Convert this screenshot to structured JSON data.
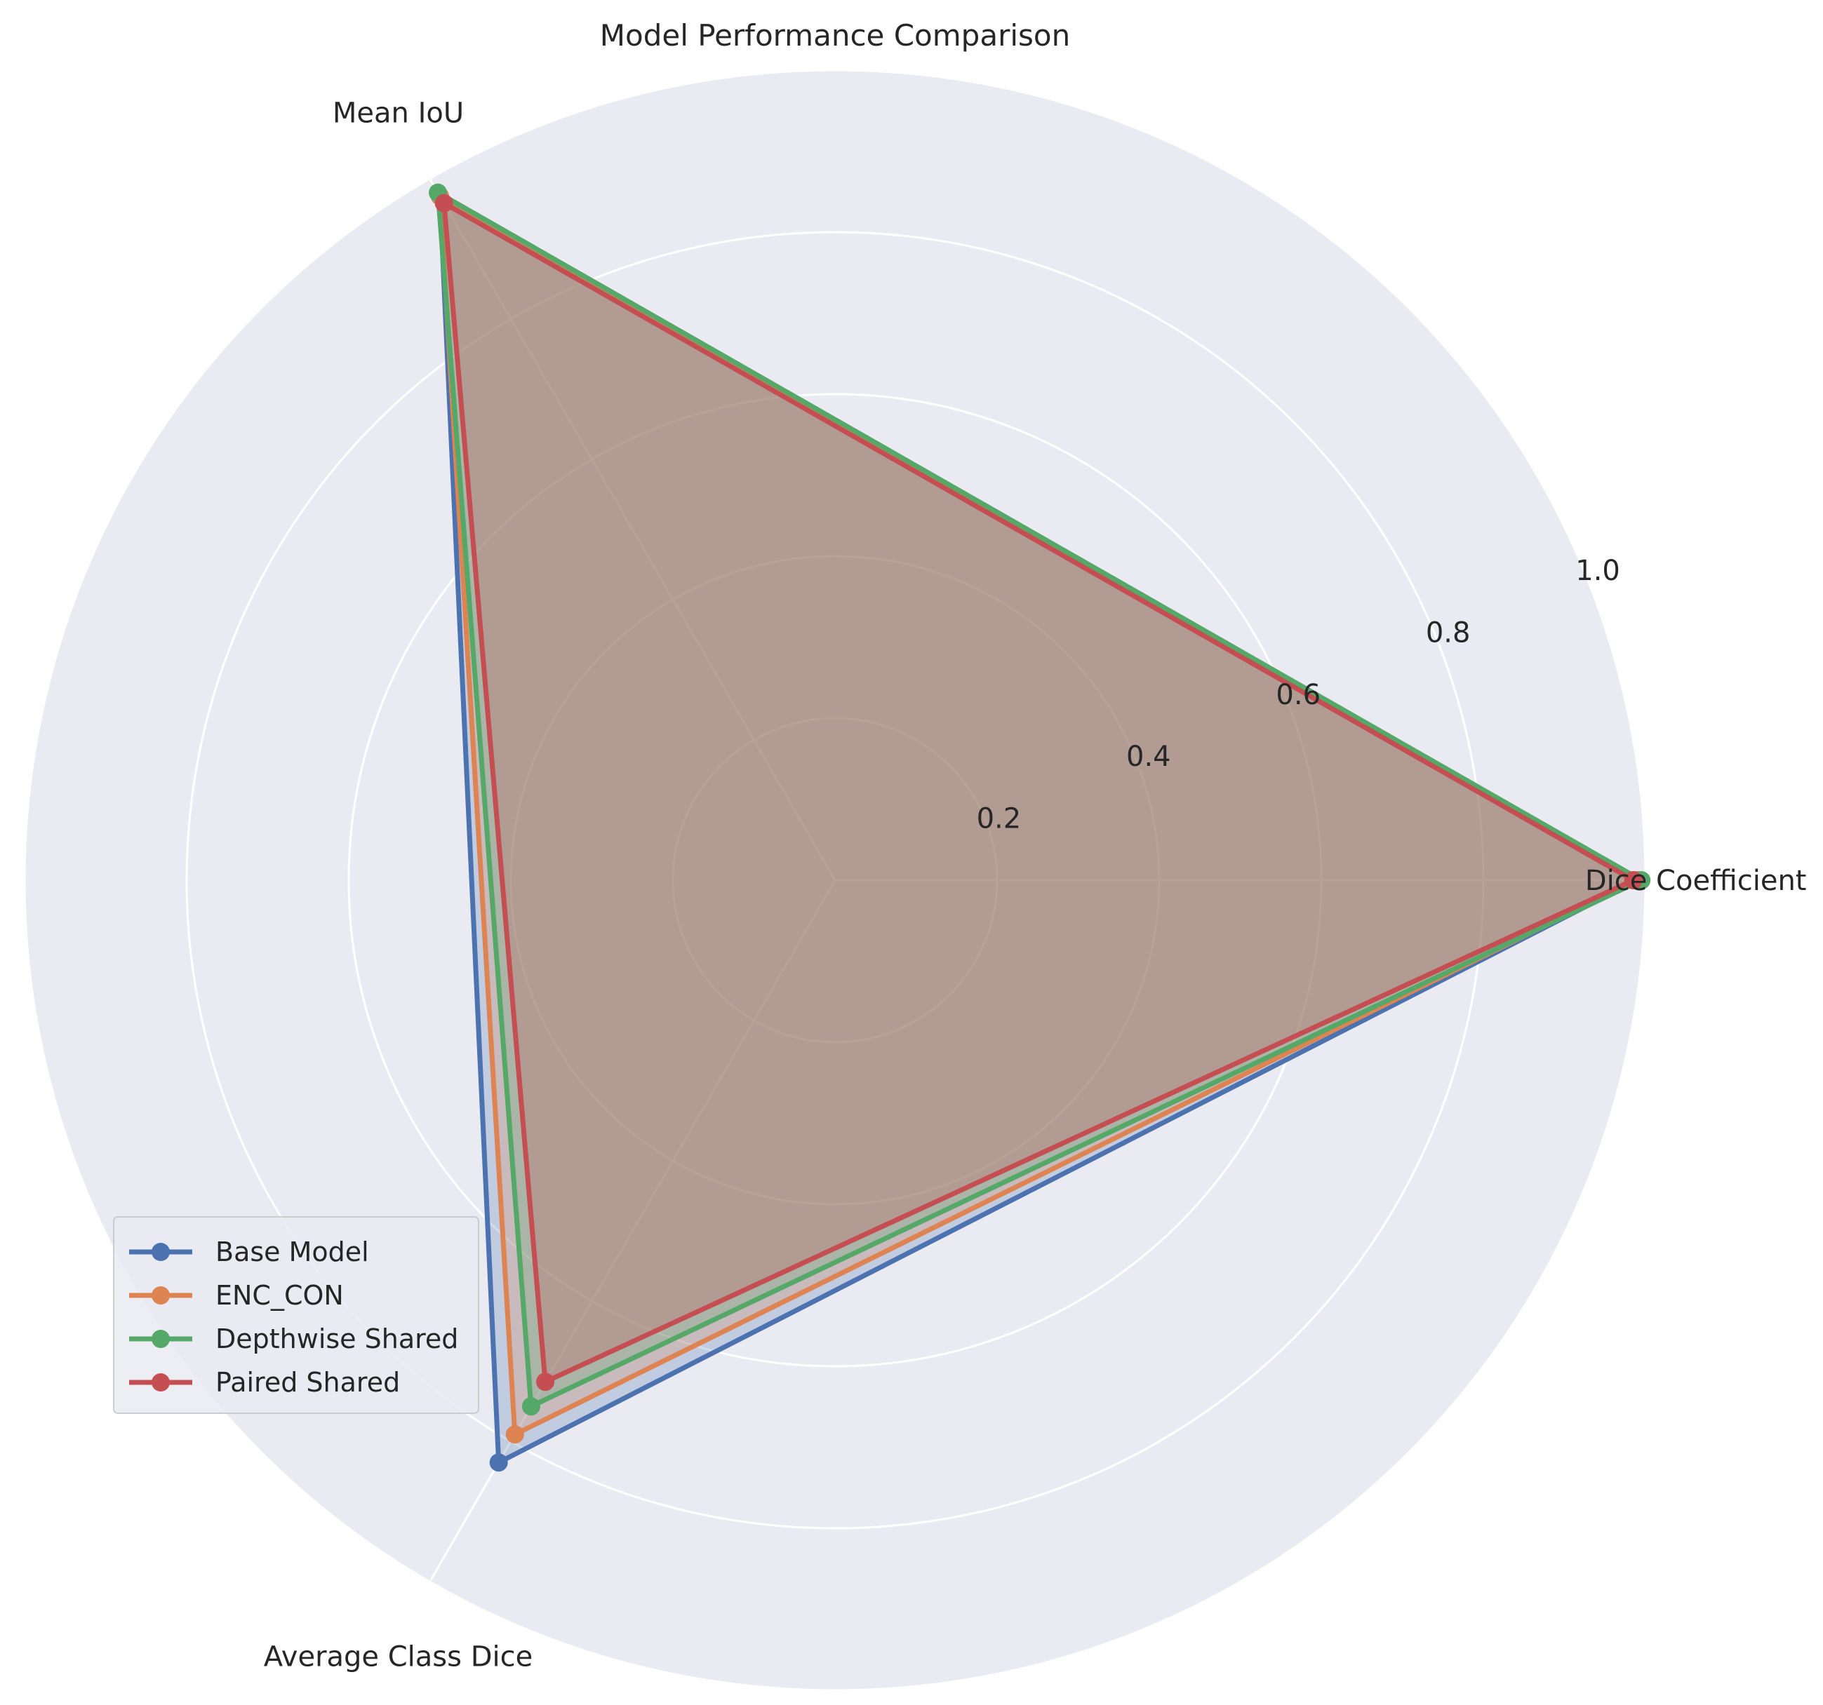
{
  "chart_data": {
    "type": "radar",
    "title": "Model Performance Comparison",
    "axes": [
      "Dice Coefficient",
      "Mean IoU",
      "Average Class Dice"
    ],
    "r_range": [
      0,
      1.0
    ],
    "r_ticks": [
      0.2,
      0.4,
      0.6,
      0.8,
      1.0
    ],
    "r_tick_labels": [
      "0.2",
      "0.4",
      "0.6",
      "0.8",
      "1.0"
    ],
    "grid": true,
    "legend_position": "lower-left",
    "series": [
      {
        "name": "Base Model",
        "values": [
          0.99,
          0.975,
          0.83
        ],
        "color": "#4c72b0"
      },
      {
        "name": "ENC_CON",
        "values": [
          0.99,
          0.975,
          0.79
        ],
        "color": "#dd8452"
      },
      {
        "name": "Depthwise Shared",
        "values": [
          0.995,
          0.98,
          0.75
        ],
        "color": "#55a868"
      },
      {
        "name": "Paired Shared",
        "values": [
          0.985,
          0.965,
          0.715
        ],
        "color": "#c44e52"
      }
    ]
  }
}
